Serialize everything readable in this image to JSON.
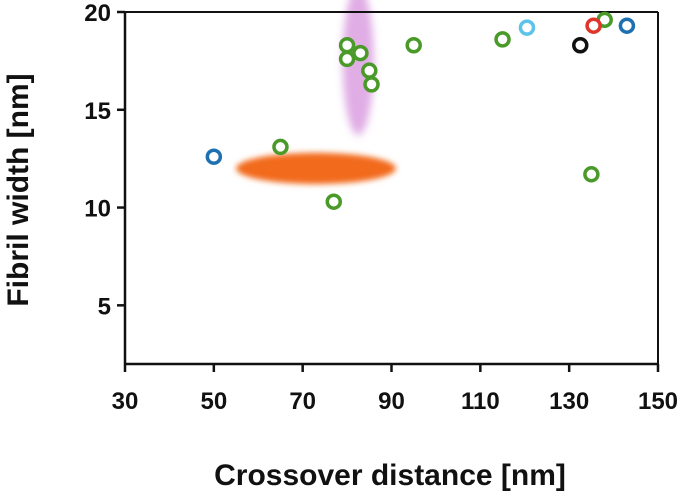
{
  "chart_data": {
    "type": "scatter",
    "title": "",
    "xlabel": "Crossover distance [nm]",
    "ylabel": "Fibril width [nm]",
    "xlim": [
      30,
      150
    ],
    "ylim": [
      2,
      20
    ],
    "xticks": [
      30,
      50,
      70,
      90,
      110,
      130,
      150
    ],
    "yticks": [
      5,
      10,
      15,
      20
    ],
    "grid": false,
    "series": [
      {
        "name": "green",
        "color": "#4a9a2a",
        "points": [
          [
            80,
            18.3
          ],
          [
            80,
            17.6
          ],
          [
            83,
            17.9
          ],
          [
            85,
            17.0
          ],
          [
            85.5,
            16.3
          ],
          [
            95,
            18.3
          ],
          [
            115,
            18.6
          ],
          [
            138,
            19.6
          ],
          [
            135,
            11.7
          ],
          [
            65,
            13.1
          ],
          [
            77,
            10.3
          ]
        ]
      },
      {
        "name": "blue",
        "color": "#1f70b0",
        "points": [
          [
            50,
            12.6
          ],
          [
            143,
            19.3
          ]
        ]
      },
      {
        "name": "light-blue",
        "color": "#5ec3ea",
        "points": [
          [
            120.5,
            19.2
          ]
        ]
      },
      {
        "name": "red",
        "color": "#e0352b",
        "points": [
          [
            135.5,
            19.3
          ]
        ]
      },
      {
        "name": "black",
        "color": "#111111",
        "points": [
          [
            132.5,
            18.3
          ]
        ]
      }
    ],
    "regions": [
      {
        "name": "magenta-region",
        "color": "#c76ad0",
        "center": [
          82.5,
          17.5
        ],
        "half_width": [
          3.5,
          3.8
        ],
        "opacity": 0.55
      },
      {
        "name": "orange-region",
        "color": "#f26a1b",
        "center": [
          73,
          12.0
        ],
        "half_width": [
          18,
          0.8
        ],
        "opacity": 1.0
      }
    ]
  }
}
